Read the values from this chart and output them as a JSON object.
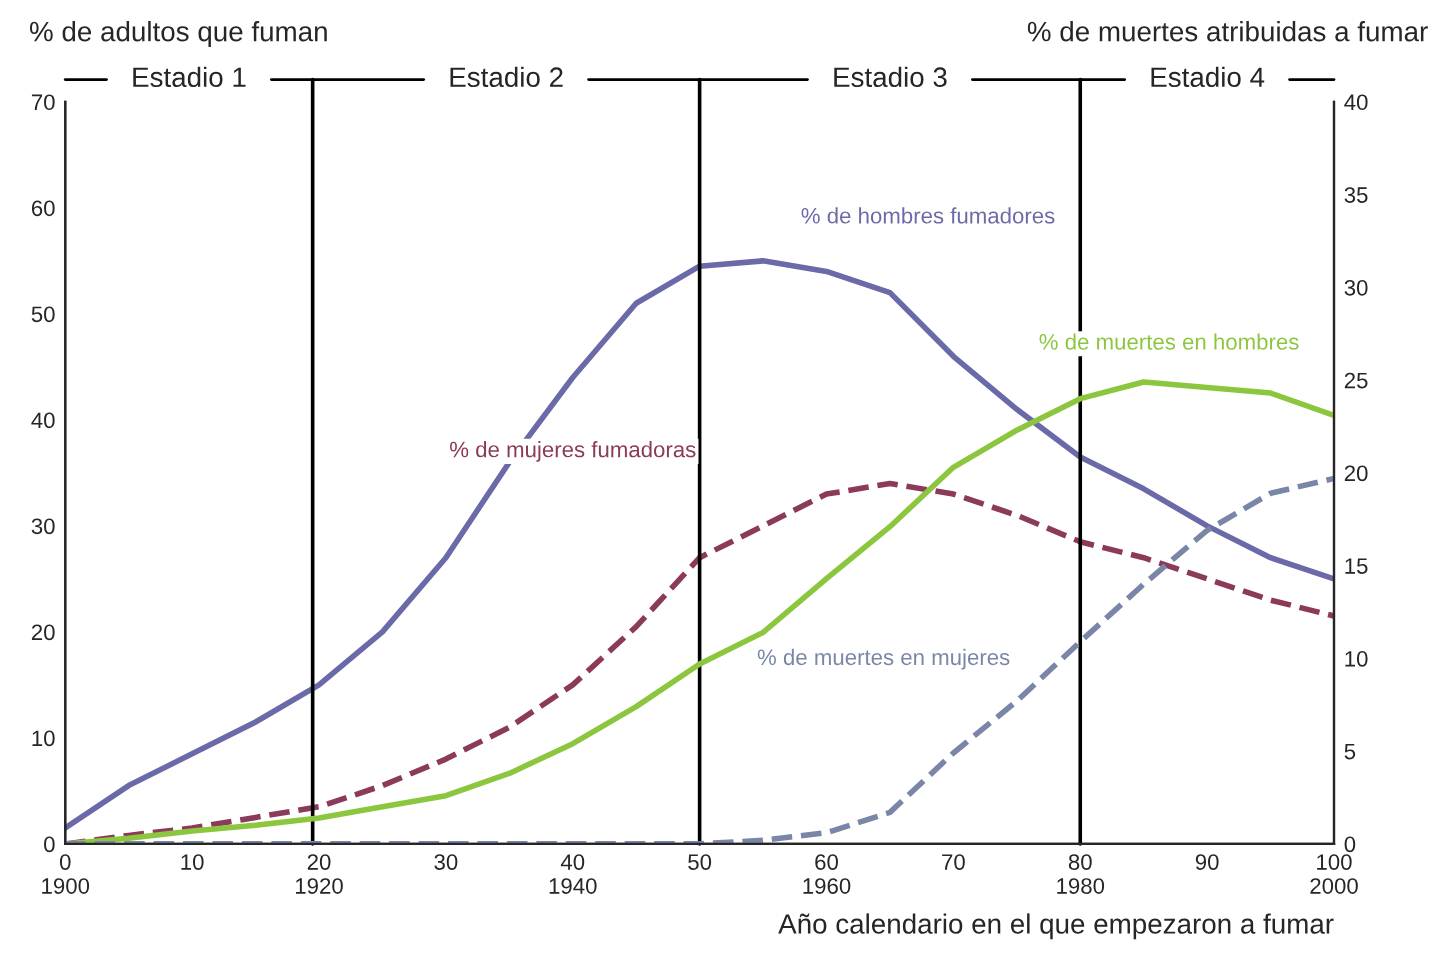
{
  "chart_data": {
    "type": "line",
    "ylabel": "% de adultos que fuman",
    "y2label": "% de muertes atribuidas a fumar",
    "xlabel": "Año calendario en el que empezaron a fumar",
    "xlim": [
      0,
      100
    ],
    "xticks": [
      {
        "value": 0,
        "label": "0\n1900"
      },
      10,
      {
        "value": 20,
        "label": "20\n1920"
      },
      30,
      {
        "value": 40,
        "label": "40\n1940"
      },
      50,
      {
        "value": 60,
        "label": "60\n1960"
      },
      70,
      {
        "value": 80,
        "label": "80\n1980"
      },
      90,
      {
        "value": 100,
        "label": "100\n2000"
      }
    ],
    "ylim": [
      0,
      70
    ],
    "yticks": [
      0,
      10,
      20,
      30,
      40,
      50,
      60,
      70
    ],
    "y2lim": [
      0,
      40
    ],
    "y2ticks": [
      0,
      5,
      10,
      15,
      20,
      25,
      30,
      35,
      40
    ],
    "x": [
      0,
      5,
      10,
      15,
      20,
      25,
      30,
      35,
      40,
      45,
      50,
      55,
      60,
      65,
      70,
      75,
      80,
      85,
      90,
      95,
      100
    ],
    "series": [
      {
        "name": "% de hombres fumadores",
        "color": "#6b6aa8",
        "line_style": "solid",
        "values": [
          1.5,
          5.5,
          8.5,
          11.5,
          15,
          20,
          27,
          36,
          44,
          51,
          54.5,
          55,
          54,
          52,
          46,
          41,
          36.5,
          33.5,
          30,
          27,
          25
        ]
      },
      {
        "name": "% de mujeres fumadoras",
        "color": "#8b3a5a",
        "line_style": "dashed",
        "values": [
          0,
          0.8,
          1.5,
          2.5,
          3.5,
          5.5,
          8,
          11,
          15,
          20.5,
          27,
          30,
          33,
          34,
          33,
          31,
          28.5,
          27,
          25,
          23,
          21.5
        ]
      },
      {
        "name": "% de muertes en hombres",
        "color": "#8cc63f",
        "line_style": "solid",
        "axis": "y2",
        "values": [
          0,
          0.3,
          0.7,
          1.0,
          1.4,
          2.0,
          2.6,
          3.8,
          5.4,
          7.4,
          9.7,
          11.4,
          14.3,
          17.1,
          20.3,
          22.3,
          24,
          24.9,
          24.6,
          24.3,
          23.1
        ]
      },
      {
        "name": "% de muertes en mujeres",
        "color": "#7a86a8",
        "line_style": "dashed",
        "axis": "y2",
        "values": [
          0,
          0,
          0,
          0,
          0,
          0,
          0,
          0,
          0,
          0,
          0,
          0.2,
          0.6,
          1.7,
          4.9,
          7.7,
          10.9,
          14,
          16.9,
          18.9,
          19.7
        ]
      }
    ],
    "ref_lines": [
      {
        "axis": "x",
        "value": 19.5,
        "color": "#000000"
      },
      {
        "axis": "x",
        "value": 50,
        "color": "#000000"
      },
      {
        "axis": "x",
        "value": 80,
        "color": "#000000"
      }
    ],
    "annotations": [
      "Estadio 1",
      "Estadio 2",
      "Estadio 3",
      "Estadio 4"
    ],
    "grid": false,
    "legend": false
  }
}
